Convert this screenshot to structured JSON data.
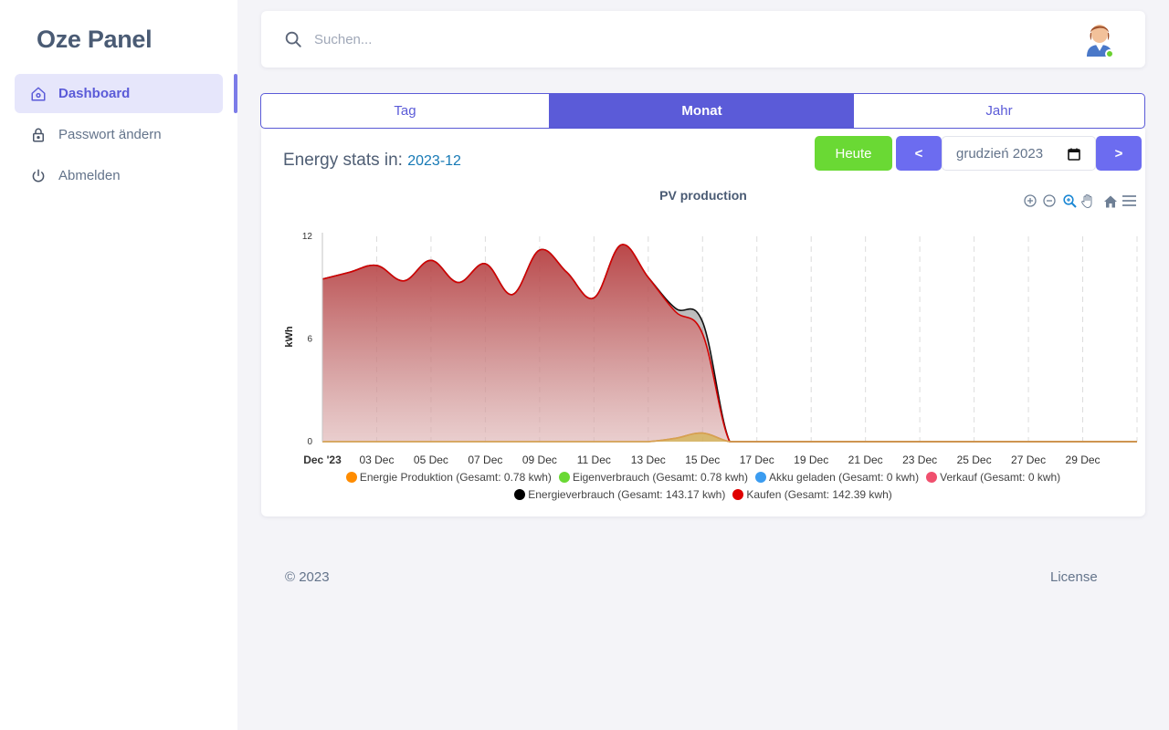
{
  "brand": "Oze Panel",
  "sidebar": {
    "items": [
      {
        "label": "Dashboard",
        "icon": "home-icon",
        "active": true
      },
      {
        "label": "Passwort ändern",
        "icon": "lock-icon",
        "active": false
      },
      {
        "label": "Abmelden",
        "icon": "power-icon",
        "active": false
      }
    ]
  },
  "search": {
    "placeholder": "Suchen..."
  },
  "tabs": [
    "Tag",
    "Monat",
    "Jahr"
  ],
  "active_tab": "Monat",
  "stats": {
    "title": "Energy stats in:",
    "period": "2023-12"
  },
  "controls": {
    "today": "Heute",
    "prev": "<",
    "next": ">",
    "month_value": "grudzień 2023"
  },
  "chart_toolbar": [
    "zoom-in-icon",
    "zoom-out-icon",
    "selection-zoom-icon",
    "pan-icon",
    "reset-home-icon",
    "menu-icon"
  ],
  "chart_data": {
    "type": "area",
    "title": "PV production",
    "ylabel": "kWh",
    "ylim": [
      0,
      12
    ],
    "yticks": [
      0,
      6,
      12
    ],
    "xtick_labels": [
      "Dec '23",
      "03 Dec",
      "05 Dec",
      "07 Dec",
      "09 Dec",
      "11 Dec",
      "13 Dec",
      "15 Dec",
      "17 Dec",
      "19 Dec",
      "21 Dec",
      "23 Dec",
      "25 Dec",
      "27 Dec",
      "29 Dec"
    ],
    "x": [
      "2023-12-01",
      "2023-12-02",
      "2023-12-03",
      "2023-12-04",
      "2023-12-05",
      "2023-12-06",
      "2023-12-07",
      "2023-12-08",
      "2023-12-09",
      "2023-12-10",
      "2023-12-11",
      "2023-12-12",
      "2023-12-13",
      "2023-12-14",
      "2023-12-15",
      "2023-12-16",
      "2023-12-17",
      "2023-12-18",
      "2023-12-19",
      "2023-12-20",
      "2023-12-21",
      "2023-12-22",
      "2023-12-23",
      "2023-12-24",
      "2023-12-25",
      "2023-12-26",
      "2023-12-27",
      "2023-12-28",
      "2023-12-29",
      "2023-12-30",
      "2023-12-31"
    ],
    "series": [
      {
        "name": "Energie Produktion",
        "color": "#ff8c00",
        "values": [
          0,
          0,
          0,
          0,
          0,
          0,
          0,
          0,
          0,
          0,
          0,
          0,
          0,
          0.2,
          0.5,
          0,
          0,
          0,
          0,
          0,
          0,
          0,
          0,
          0,
          0,
          0,
          0,
          0,
          0,
          0,
          0
        ]
      },
      {
        "name": "Eigenverbrauch",
        "color": "#6ad934",
        "values": [
          0,
          0,
          0,
          0,
          0,
          0,
          0,
          0,
          0,
          0,
          0,
          0,
          0,
          0.2,
          0.5,
          0,
          0,
          0,
          0,
          0,
          0,
          0,
          0,
          0,
          0,
          0,
          0,
          0,
          0,
          0,
          0
        ]
      },
      {
        "name": "Akku geladen",
        "color": "#3b9cf0",
        "values": [
          0,
          0,
          0,
          0,
          0,
          0,
          0,
          0,
          0,
          0,
          0,
          0,
          0,
          0,
          0,
          0,
          0,
          0,
          0,
          0,
          0,
          0,
          0,
          0,
          0,
          0,
          0,
          0,
          0,
          0,
          0
        ]
      },
      {
        "name": "Verkauf",
        "color": "#f0506e",
        "values": [
          0,
          0,
          0,
          0,
          0,
          0,
          0,
          0,
          0,
          0,
          0,
          0,
          0,
          0,
          0,
          0,
          0,
          0,
          0,
          0,
          0,
          0,
          0,
          0,
          0,
          0,
          0,
          0,
          0,
          0,
          0
        ]
      },
      {
        "name": "Energieverbrauch",
        "color": "#000000",
        "values": [
          9.5,
          9.9,
          10.3,
          9.4,
          10.6,
          9.3,
          10.4,
          8.6,
          11.2,
          9.9,
          8.4,
          11.5,
          9.6,
          7.8,
          7.0,
          0,
          0,
          0,
          0,
          0,
          0,
          0,
          0,
          0,
          0,
          0,
          0,
          0,
          0,
          0,
          0
        ]
      },
      {
        "name": "Kaufen",
        "color": "#e00000",
        "values": [
          9.5,
          9.9,
          10.3,
          9.4,
          10.6,
          9.3,
          10.4,
          8.6,
          11.2,
          9.9,
          8.4,
          11.5,
          9.6,
          7.6,
          6.3,
          0,
          0,
          0,
          0,
          0,
          0,
          0,
          0,
          0,
          0,
          0,
          0,
          0,
          0,
          0,
          0
        ]
      }
    ],
    "legend": [
      "Energie Produktion (Gesamt: 0.78 kwh)",
      "Eigenverbrauch (Gesamt: 0.78 kwh)",
      "Akku geladen (Gesamt: 0 kwh)",
      "Verkauf (Gesamt: 0 kwh)",
      "Energieverbrauch (Gesamt: 143.17 kwh)",
      "Kaufen (Gesamt: 142.39 kwh)"
    ],
    "legend_placement": "bottom",
    "grid": "vertical dashed"
  },
  "footer": {
    "copyright": "© 2023",
    "license": "License"
  }
}
